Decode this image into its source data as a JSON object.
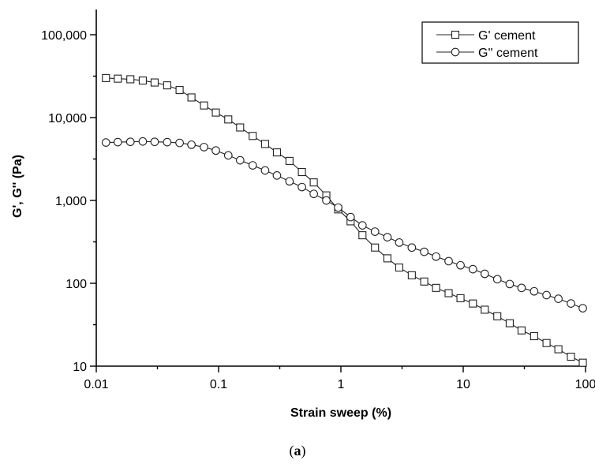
{
  "chart_data": {
    "type": "scatter",
    "xlabel": "Strain sweep (%)",
    "ylabel": "G', G'' (Pa)",
    "xscale": "log",
    "yscale": "log",
    "xlim": [
      0.01,
      100
    ],
    "ylim": [
      10,
      100000
    ],
    "x_ticks": [
      "0.01",
      "0.1",
      "1",
      "10",
      "100"
    ],
    "y_ticks": [
      "10",
      "100",
      "1,000",
      "10,000",
      "100,000"
    ],
    "legend_position": "top-right",
    "series": [
      {
        "name": "G' cement",
        "marker": "square",
        "x": [
          0.012,
          0.015,
          0.019,
          0.024,
          0.03,
          0.038,
          0.048,
          0.06,
          0.076,
          0.095,
          0.12,
          0.15,
          0.19,
          0.24,
          0.3,
          0.38,
          0.48,
          0.6,
          0.76,
          0.95,
          1.2,
          1.5,
          1.9,
          2.4,
          3.0,
          3.8,
          4.8,
          6.0,
          7.6,
          9.5,
          12,
          15,
          19,
          24,
          30,
          38,
          48,
          60,
          76,
          95
        ],
        "y": [
          30000,
          29500,
          29000,
          28000,
          26500,
          24500,
          21500,
          17500,
          14000,
          11500,
          9500,
          7600,
          6000,
          4800,
          3800,
          3000,
          2200,
          1650,
          1150,
          780,
          560,
          380,
          270,
          200,
          155,
          125,
          105,
          88,
          76,
          66,
          57,
          48,
          40,
          33,
          27,
          23,
          19,
          16,
          13,
          11
        ]
      },
      {
        "name": "G'' cement",
        "marker": "circle",
        "x": [
          0.012,
          0.015,
          0.019,
          0.024,
          0.03,
          0.038,
          0.048,
          0.06,
          0.076,
          0.095,
          0.12,
          0.15,
          0.19,
          0.24,
          0.3,
          0.38,
          0.48,
          0.6,
          0.76,
          0.95,
          1.2,
          1.5,
          1.9,
          2.4,
          3.0,
          3.8,
          4.8,
          6.0,
          7.6,
          9.5,
          12,
          15,
          19,
          24,
          30,
          38,
          48,
          60,
          76,
          95
        ],
        "y": [
          5000,
          5050,
          5100,
          5150,
          5100,
          5050,
          4950,
          4700,
          4400,
          4000,
          3500,
          3050,
          2650,
          2300,
          2000,
          1700,
          1450,
          1200,
          1000,
          820,
          630,
          500,
          420,
          360,
          310,
          270,
          240,
          210,
          185,
          165,
          148,
          130,
          112,
          98,
          88,
          80,
          72,
          65,
          57,
          50
        ]
      }
    ]
  },
  "caption": {
    "open": "(",
    "letter": "a",
    "close": ")"
  }
}
